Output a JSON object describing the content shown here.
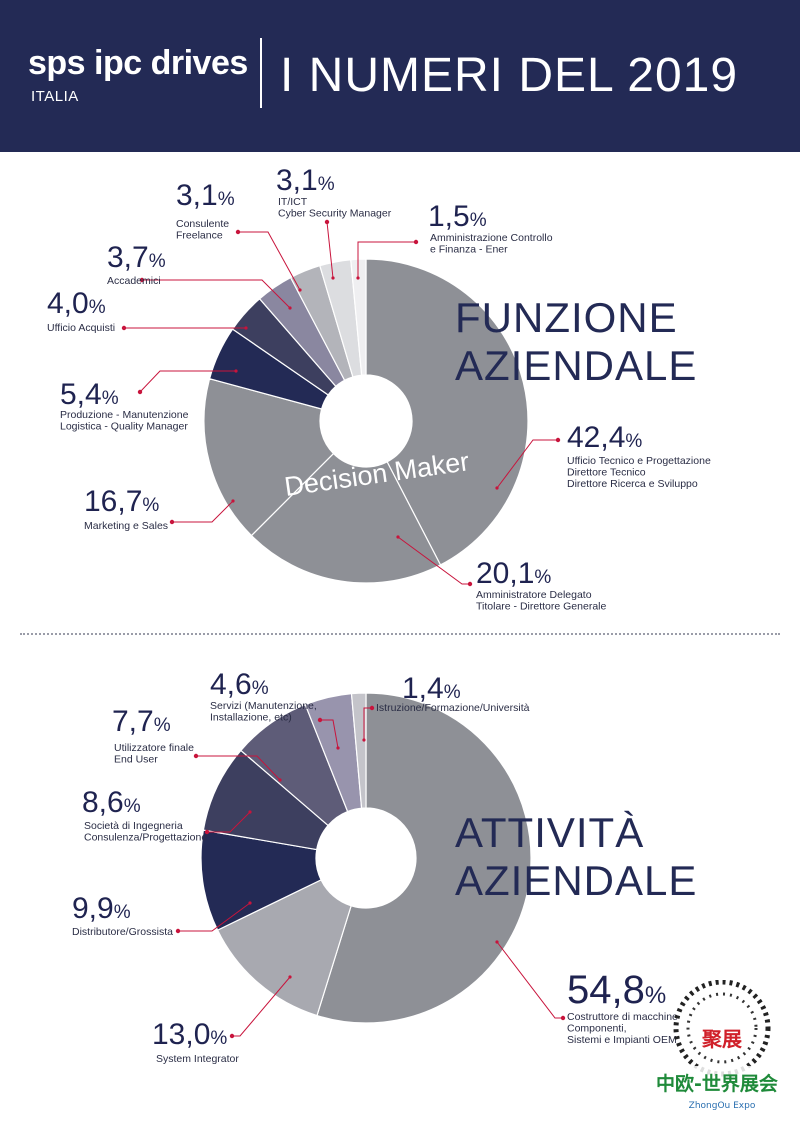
{
  "header": {
    "brand": "sps ipc drives",
    "brand_sub": "ITALIA",
    "title": "I NUMERI DEL 2019"
  },
  "colors": {
    "header_bg": "#232a55",
    "leader_dot": "#c8143c",
    "navy": "#232a55",
    "gray": "#8e9096"
  },
  "watermark": {
    "text": "聚展",
    "brand": "中欧-世界展会",
    "brand_sub": "ZhongOu Expo"
  },
  "chart_data": [
    {
      "type": "pie",
      "variant": "donut",
      "title": "FUNZIONE\nAZIENDALE",
      "title_lines": [
        "FUNZIONE",
        "AZIENDALE"
      ],
      "center_label": "Decision Maker",
      "slices": [
        {
          "value": 42.4,
          "pct_label": "42,4",
          "label_lines": [
            "Ufficio Tecnico e Progettazione",
            "Direttore Tecnico",
            "Direttore Ricerca e Sviluppo"
          ],
          "color": "#8e9096"
        },
        {
          "value": 20.1,
          "pct_label": "20,1",
          "label_lines": [
            "Amministratore Delegato",
            "Titolare - Direttore Generale"
          ],
          "color": "#8e9096"
        },
        {
          "value": 16.7,
          "pct_label": "16,7",
          "label_lines": [
            "Marketing e Sales"
          ],
          "color": "#8e9096"
        },
        {
          "value": 5.4,
          "pct_label": "5,4",
          "label_lines": [
            "Produzione - Manutenzione",
            "Logistica - Quality Manager"
          ],
          "color": "#232a55"
        },
        {
          "value": 4.0,
          "pct_label": "4,0",
          "label_lines": [
            "Ufficio Acquisti"
          ],
          "color": "#3d3f5f"
        },
        {
          "value": 3.7,
          "pct_label": "3,7",
          "label_lines": [
            "Accademici"
          ],
          "color": "#8a87a0"
        },
        {
          "value": 3.1,
          "pct_label": "3,1",
          "label_lines": [
            "Consulente",
            "Freelance"
          ],
          "color": "#b3b4ba"
        },
        {
          "value": 3.1,
          "pct_label": "3,1",
          "label_lines": [
            "IT/ICT",
            "Cyber Security Manager"
          ],
          "color": "#dcdde0"
        },
        {
          "value": 1.5,
          "pct_label": "1,5",
          "label_lines": [
            "Amministrazione Controllo",
            "e Finanza - Ener"
          ],
          "color": "#efeff1"
        }
      ]
    },
    {
      "type": "pie",
      "variant": "donut",
      "title": "ATTIVITÀ\nAZIENDALE",
      "title_lines": [
        "ATTIVITÀ",
        "AZIENDALE"
      ],
      "slices": [
        {
          "value": 54.8,
          "pct_label": "54,8",
          "label_lines": [
            "Costruttore di macchine",
            "Componenti,",
            "Sistemi e Impianti OEM"
          ],
          "color": "#8e9096"
        },
        {
          "value": 13.0,
          "pct_label": "13,0",
          "label_lines": [
            "System Integrator"
          ],
          "color": "#a8a9b0"
        },
        {
          "value": 9.9,
          "pct_label": "9,9",
          "label_lines": [
            "Distributore/Grossista"
          ],
          "color": "#232a55"
        },
        {
          "value": 8.6,
          "pct_label": "8,6",
          "label_lines": [
            "Società di Ingegneria",
            "Consulenza/Progettazione"
          ],
          "color": "#3d3f5f"
        },
        {
          "value": 7.7,
          "pct_label": "7,7",
          "label_lines": [
            "Utilizzatore finale",
            "End User"
          ],
          "color": "#5e5c78"
        },
        {
          "value": 4.6,
          "pct_label": "4,6",
          "label_lines": [
            "Servizi (Manutenzione,",
            "Installazione, etc)"
          ],
          "color": "#9894ad"
        },
        {
          "value": 1.4,
          "pct_label": "1,4",
          "label_lines": [
            "Istruzione/Formazione/Università"
          ],
          "color": "#c4c4ca"
        }
      ]
    }
  ]
}
